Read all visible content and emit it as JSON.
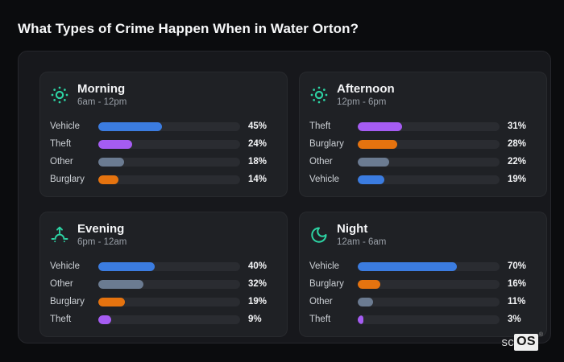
{
  "title": "What Types of Crime Happen When in Water Orton?",
  "logo": {
    "prefix": "sc",
    "box": "OS",
    "registered": "®"
  },
  "colors": {
    "Vehicle": "#3b7ce0",
    "Theft": "#a55cf2",
    "Other": "#6b7b91",
    "Burglary": "#e5730f",
    "accent_teal": "#2dd4a4",
    "page_bg": "#0b0c0e",
    "container_bg": "#17181c",
    "panel_bg": "#1f2125",
    "track_bg": "#2a2c31"
  },
  "panels": [
    {
      "id": "morning",
      "title": "Morning",
      "range": "6am - 12pm",
      "icon": "sun-icon",
      "rows": [
        {
          "label": "Vehicle",
          "value": 45,
          "pct": "45%"
        },
        {
          "label": "Theft",
          "value": 24,
          "pct": "24%"
        },
        {
          "label": "Other",
          "value": 18,
          "pct": "18%"
        },
        {
          "label": "Burglary",
          "value": 14,
          "pct": "14%"
        }
      ]
    },
    {
      "id": "afternoon",
      "title": "Afternoon",
      "range": "12pm - 6pm",
      "icon": "sun-icon",
      "rows": [
        {
          "label": "Theft",
          "value": 31,
          "pct": "31%"
        },
        {
          "label": "Burglary",
          "value": 28,
          "pct": "28%"
        },
        {
          "label": "Other",
          "value": 22,
          "pct": "22%"
        },
        {
          "label": "Vehicle",
          "value": 19,
          "pct": "19%"
        }
      ]
    },
    {
      "id": "evening",
      "title": "Evening",
      "range": "6pm - 12am",
      "icon": "sunrise-icon",
      "rows": [
        {
          "label": "Vehicle",
          "value": 40,
          "pct": "40%"
        },
        {
          "label": "Other",
          "value": 32,
          "pct": "32%"
        },
        {
          "label": "Burglary",
          "value": 19,
          "pct": "19%"
        },
        {
          "label": "Theft",
          "value": 9,
          "pct": "9%"
        }
      ]
    },
    {
      "id": "night",
      "title": "Night",
      "range": "12am - 6am",
      "icon": "moon-icon",
      "rows": [
        {
          "label": "Vehicle",
          "value": 70,
          "pct": "70%"
        },
        {
          "label": "Burglary",
          "value": 16,
          "pct": "16%"
        },
        {
          "label": "Other",
          "value": 11,
          "pct": "11%"
        },
        {
          "label": "Theft",
          "value": 3,
          "pct": "3%"
        }
      ]
    }
  ],
  "chart_data": [
    {
      "type": "bar",
      "orientation": "horizontal",
      "title": "Morning (6am - 12pm)",
      "categories": [
        "Vehicle",
        "Theft",
        "Other",
        "Burglary"
      ],
      "values": [
        45,
        24,
        18,
        14
      ],
      "unit": "%",
      "xlim": [
        0,
        100
      ],
      "grid": false,
      "legend": false
    },
    {
      "type": "bar",
      "orientation": "horizontal",
      "title": "Afternoon (12pm - 6pm)",
      "categories": [
        "Theft",
        "Burglary",
        "Other",
        "Vehicle"
      ],
      "values": [
        31,
        28,
        22,
        19
      ],
      "unit": "%",
      "xlim": [
        0,
        100
      ],
      "grid": false,
      "legend": false
    },
    {
      "type": "bar",
      "orientation": "horizontal",
      "title": "Evening (6pm - 12am)",
      "categories": [
        "Vehicle",
        "Other",
        "Burglary",
        "Theft"
      ],
      "values": [
        40,
        32,
        19,
        9
      ],
      "unit": "%",
      "xlim": [
        0,
        100
      ],
      "grid": false,
      "legend": false
    },
    {
      "type": "bar",
      "orientation": "horizontal",
      "title": "Night (12am - 6am)",
      "categories": [
        "Vehicle",
        "Burglary",
        "Other",
        "Theft"
      ],
      "values": [
        70,
        16,
        11,
        3
      ],
      "unit": "%",
      "xlim": [
        0,
        100
      ],
      "grid": false,
      "legend": false
    }
  ]
}
